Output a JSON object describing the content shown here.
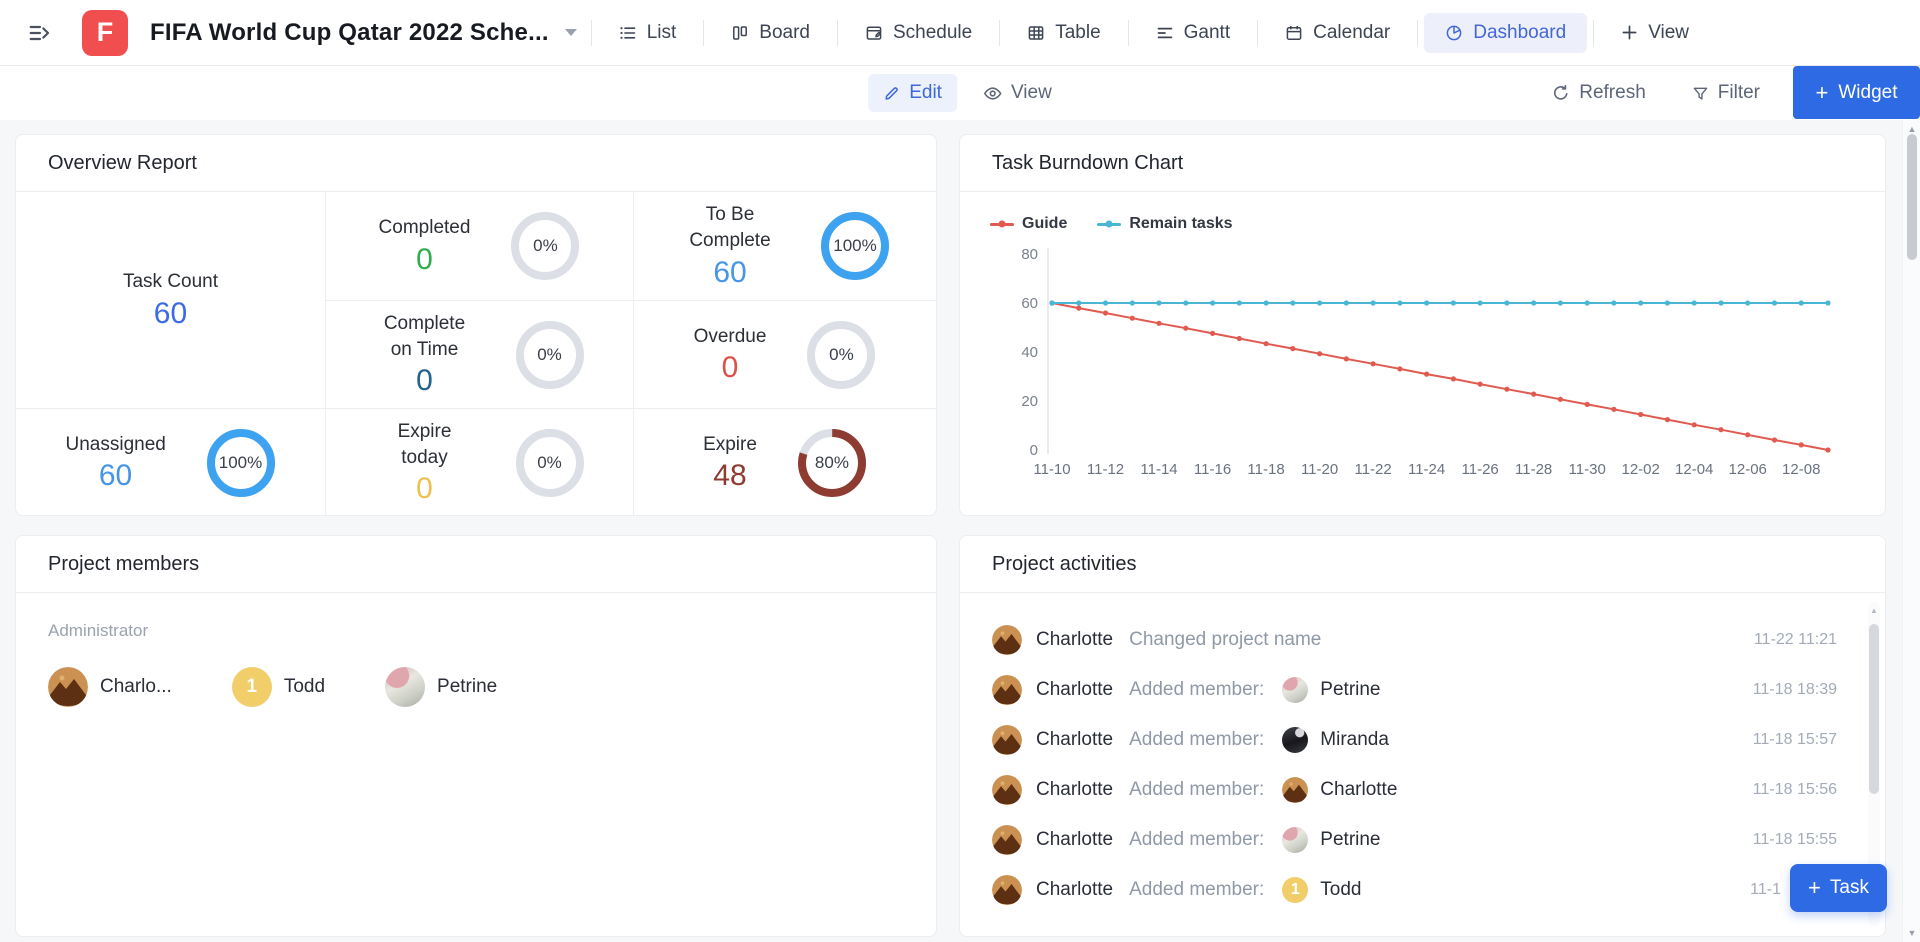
{
  "header": {
    "logo_letter": "F",
    "project_title": "FIFA World Cup Qatar 2022 Sche...",
    "tabs": [
      {
        "label": "List",
        "icon": "list-icon",
        "active": false
      },
      {
        "label": "Board",
        "icon": "board-icon",
        "active": false
      },
      {
        "label": "Schedule",
        "icon": "schedule-icon",
        "active": false
      },
      {
        "label": "Table",
        "icon": "table-icon",
        "active": false
      },
      {
        "label": "Gantt",
        "icon": "gantt-icon",
        "active": false
      },
      {
        "label": "Calendar",
        "icon": "calendar-icon",
        "active": false
      },
      {
        "label": "Dashboard",
        "icon": "dashboard-icon",
        "active": true
      },
      {
        "label": "View",
        "icon": "plus-icon",
        "active": false
      }
    ]
  },
  "toolbar": {
    "edit_label": "Edit",
    "edit_icon": "pencil-icon",
    "view_label": "View",
    "view_icon": "eye-icon",
    "refresh_label": "Refresh",
    "refresh_icon": "refresh-icon",
    "filter_label": "Filter",
    "filter_icon": "funnel-icon",
    "widget_label": "Widget",
    "widget_icon": "plus-icon"
  },
  "overview": {
    "title": "Overview Report",
    "cells": [
      {
        "key": "task-count",
        "label": "Task Count",
        "value": "60",
        "value_color": "#3b6be4",
        "ring_pct": null,
        "pct_label": null,
        "ring_color": null
      },
      {
        "key": "completed",
        "label": "Completed",
        "value": "0",
        "value_color": "#2fae4e",
        "ring_pct": 0,
        "pct_label": "0%",
        "ring_color": null
      },
      {
        "key": "to-be-complete",
        "label": "To Be Complete",
        "value": "60",
        "value_color": "#4695e6",
        "ring_pct": 100,
        "pct_label": "100%",
        "ring_color": "#3da2ef"
      },
      {
        "key": "complete-on-time",
        "label": "Complete on Time",
        "value": "0",
        "value_color": "#23638e",
        "ring_pct": 0,
        "pct_label": "0%",
        "ring_color": null
      },
      {
        "key": "overdue",
        "label": "Overdue",
        "value": "0",
        "value_color": "#dc5047",
        "ring_pct": 0,
        "pct_label": "0%",
        "ring_color": null
      },
      {
        "key": "unassigned",
        "label": "Unassigned",
        "value": "60",
        "value_color": "#4695e6",
        "ring_pct": 100,
        "pct_label": "100%",
        "ring_color": "#3da2ef"
      },
      {
        "key": "expire-today",
        "label": "Expire today",
        "value": "0",
        "value_color": "#ecc14f",
        "ring_pct": 0,
        "pct_label": "0%",
        "ring_color": null
      },
      {
        "key": "expire",
        "label": "Expire",
        "value": "48",
        "value_color": "#8e3b31",
        "ring_pct": 80,
        "pct_label": "80%",
        "ring_color": "#8e3b31"
      }
    ],
    "ring_track_color": "#dcdfe6"
  },
  "chart_data": {
    "type": "line",
    "title": "Task Burndown Chart",
    "x": [
      "11-10",
      "11-11",
      "11-12",
      "11-13",
      "11-14",
      "11-15",
      "11-16",
      "11-17",
      "11-18",
      "11-19",
      "11-20",
      "11-21",
      "11-22",
      "11-23",
      "11-24",
      "11-25",
      "11-26",
      "11-27",
      "11-28",
      "11-29",
      "11-30",
      "12-01",
      "12-02",
      "12-03",
      "12-04",
      "12-05",
      "12-06",
      "12-07",
      "12-08",
      "12-09"
    ],
    "tick_labels": [
      "11-10",
      "11-12",
      "11-14",
      "11-16",
      "11-18",
      "11-20",
      "11-22",
      "11-24",
      "11-26",
      "11-28",
      "11-30",
      "12-02",
      "12-04",
      "12-06",
      "12-08"
    ],
    "y_ticks": [
      0,
      20,
      40,
      60,
      80
    ],
    "ylim": [
      0,
      80
    ],
    "legend_position": "top-left",
    "grid": false,
    "series": [
      {
        "name": "Guide",
        "color": "#e05a50",
        "values": [
          60,
          57.9,
          55.9,
          53.8,
          51.7,
          49.7,
          47.6,
          45.5,
          43.4,
          41.4,
          39.3,
          37.2,
          35.2,
          33.1,
          31.0,
          29.0,
          26.9,
          24.8,
          22.8,
          20.7,
          18.6,
          16.6,
          14.5,
          12.4,
          10.3,
          8.3,
          6.2,
          4.1,
          2.1,
          0
        ]
      },
      {
        "name": "Remain tasks",
        "color": "#49b6d6",
        "values": [
          60,
          60,
          60,
          60,
          60,
          60,
          60,
          60,
          60,
          60,
          60,
          60,
          60,
          60,
          60,
          60,
          60,
          60,
          60,
          60,
          60,
          60,
          60,
          60,
          60,
          60,
          60,
          60,
          60,
          60
        ]
      }
    ]
  },
  "members": {
    "title": "Project members",
    "role_label": "Administrator",
    "list": [
      {
        "name": "Charlo...",
        "avatar": "charlotte"
      },
      {
        "name": "Todd",
        "avatar": "todd"
      },
      {
        "name": "Petrine",
        "avatar": "petrine"
      }
    ]
  },
  "activities": {
    "title": "Project activities",
    "rows": [
      {
        "actor": "Charlotte",
        "actor_avatar": "charlotte",
        "action": "Changed project name",
        "member": null,
        "member_avatar": null,
        "time": "11-22 11:21"
      },
      {
        "actor": "Charlotte",
        "actor_avatar": "charlotte",
        "action": "Added member:",
        "member": "Petrine",
        "member_avatar": "petrine",
        "time": "11-18 18:39"
      },
      {
        "actor": "Charlotte",
        "actor_avatar": "charlotte",
        "action": "Added member:",
        "member": "Miranda",
        "member_avatar": "miranda",
        "time": "11-18 15:57"
      },
      {
        "actor": "Charlotte",
        "actor_avatar": "charlotte",
        "action": "Added member:",
        "member": "Charlotte",
        "member_avatar": "charlotte",
        "time": "11-18 15:56"
      },
      {
        "actor": "Charlotte",
        "actor_avatar": "charlotte",
        "action": "Added member:",
        "member": "Petrine",
        "member_avatar": "petrine",
        "time": "11-18 15:55"
      },
      {
        "actor": "Charlotte",
        "actor_avatar": "charlotte",
        "action": "Added member:",
        "member": "Todd",
        "member_avatar": "todd",
        "time": "11-1"
      }
    ]
  },
  "task_button": {
    "label": "Task",
    "icon": "plus-icon"
  },
  "avatar_colors": {
    "todd_bg": "#f1ce6a",
    "charlotte_bg": "#cb9152",
    "charlotte_fg": "#5d3014"
  },
  "accent_colors": {
    "primary_blue": "#2e6ae3",
    "active_tab_blue": "#4367d9",
    "logo_red": "#f14f4f"
  }
}
